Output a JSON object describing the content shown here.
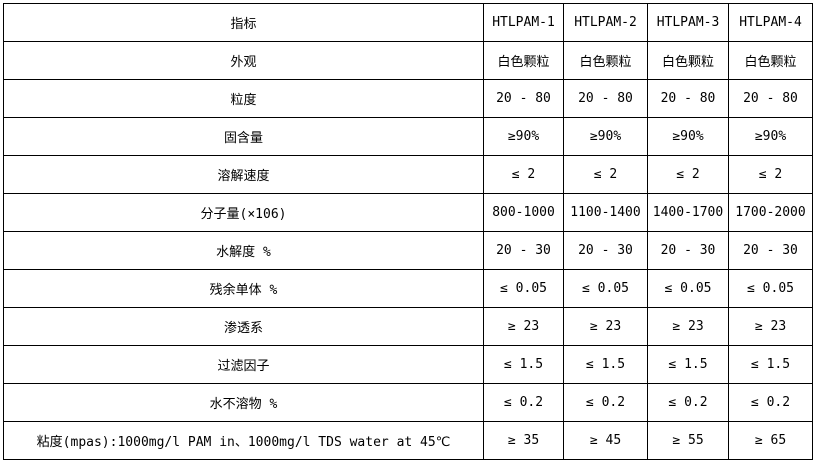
{
  "table": {
    "title": "HTLPAM product specification table",
    "colors": {
      "border": "#000000",
      "background": "#ffffff",
      "text": "#000000"
    },
    "columns": [
      "指标",
      "HTLPAM-1",
      "HTLPAM-2",
      "HTLPAM-3",
      "HTLPAM-4"
    ],
    "rows": [
      {
        "label": "外观",
        "values": [
          "白色颗粒",
          "白色颗粒",
          "白色颗粒",
          "白色颗粒"
        ]
      },
      {
        "label": "粒度",
        "values": [
          "20 - 80",
          "20 - 80",
          "20 - 80",
          "20 - 80"
        ]
      },
      {
        "label": "固含量",
        "values": [
          "≥90%",
          "≥90%",
          "≥90%",
          "≥90%"
        ]
      },
      {
        "label": "溶解速度",
        "values": [
          "≤ 2",
          "≤ 2",
          "≤ 2",
          "≤ 2"
        ]
      },
      {
        "label": "分子量(×106)",
        "values": [
          "800-1000",
          "1100-1400",
          "1400-1700",
          "1700-2000"
        ]
      },
      {
        "label": "水解度 %",
        "values": [
          "20 - 30",
          "20 - 30",
          "20 - 30",
          "20 - 30"
        ]
      },
      {
        "label": "残余单体 %",
        "values": [
          "≤ 0.05",
          "≤ 0.05",
          "≤ 0.05",
          "≤ 0.05"
        ]
      },
      {
        "label": "渗透系",
        "values": [
          "≥ 23",
          "≥ 23",
          "≥ 23",
          "≥ 23"
        ]
      },
      {
        "label": "过滤因子",
        "values": [
          "≤ 1.5",
          "≤ 1.5",
          "≤ 1.5",
          "≤ 1.5"
        ]
      },
      {
        "label": "水不溶物 %",
        "values": [
          "≤ 0.2",
          "≤ 0.2",
          "≤ 0.2",
          "≤ 0.2"
        ]
      },
      {
        "label": "粘度(mpas):1000mg/l PAM in、1000mg/l TDS water at 45℃",
        "values": [
          "≥ 35",
          "≥ 45",
          "≥ 55",
          "≥ 65"
        ]
      }
    ]
  }
}
